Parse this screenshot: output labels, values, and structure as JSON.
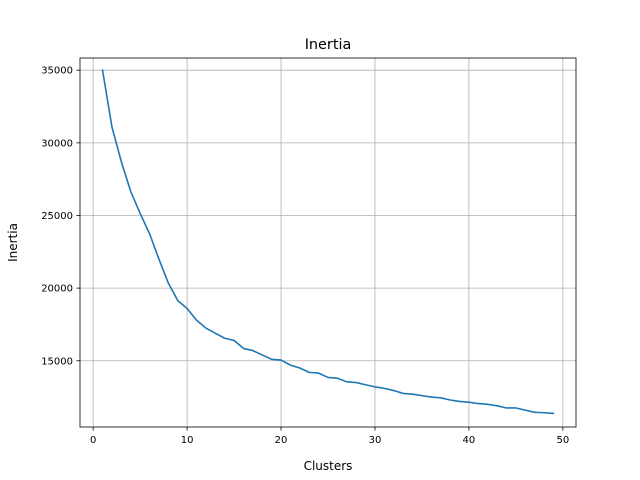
{
  "chart_data": {
    "type": "line",
    "title": "Inertia",
    "xlabel": "Clusters",
    "ylabel": "Inertia",
    "xlim": [
      -1.4,
      51.4
    ],
    "ylim": [
      10440,
      35840
    ],
    "xticks": [
      0,
      10,
      20,
      30,
      40,
      50
    ],
    "yticks": [
      15000,
      20000,
      25000,
      30000,
      35000
    ],
    "xtick_labels": [
      "0",
      "10",
      "20",
      "30",
      "40",
      "50"
    ],
    "ytick_labels": [
      "15000",
      "20000",
      "25000",
      "30000",
      "35000"
    ],
    "grid": true,
    "legend": "none",
    "line_color": "#1f77b4",
    "series": [
      {
        "x": [
          1,
          2,
          3,
          4,
          5,
          6,
          7,
          8,
          9,
          10,
          11,
          12,
          13,
          14,
          15,
          16,
          17,
          18,
          19,
          20,
          21,
          22,
          23,
          24,
          25,
          26,
          27,
          28,
          29,
          30,
          31,
          32,
          33,
          34,
          35,
          36,
          37,
          38,
          39,
          40,
          41,
          42,
          43,
          44,
          45,
          46,
          47,
          48,
          49
        ],
        "values": [
          35000,
          31100,
          28700,
          26650,
          25150,
          23750,
          22000,
          20350,
          19150,
          18600,
          17800,
          17250,
          16900,
          16550,
          16400,
          15850,
          15700,
          15400,
          15100,
          15050,
          14700,
          14500,
          14200,
          14150,
          13850,
          13800,
          13550,
          13500,
          13350,
          13200,
          13100,
          12950,
          12750,
          12700,
          12600,
          12500,
          12450,
          12300,
          12200,
          12150,
          12050,
          12000,
          11900,
          11750,
          11750,
          11600,
          11450,
          11420,
          11380
        ]
      }
    ]
  }
}
